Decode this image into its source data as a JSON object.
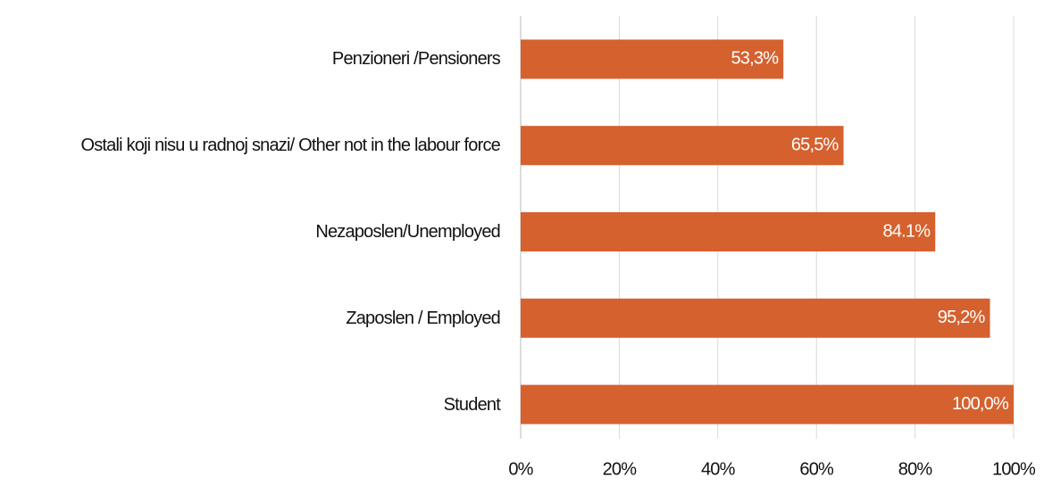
{
  "chart_data": {
    "type": "bar",
    "orientation": "horizontal",
    "categories": [
      "Penzioneri /Pensioners",
      "Ostali koji nisu u radnoj snazi/ Other not in the labour force",
      "Nezaposlen/Unemployed",
      "Zaposlen / Employed",
      "Student"
    ],
    "values": [
      53.3,
      65.5,
      84.1,
      95.2,
      100.0
    ],
    "value_labels": [
      "53,3%",
      "65,5%",
      "84.1%",
      "95,2%",
      "100,0%"
    ],
    "color": "#d5612f",
    "xlim": [
      0,
      100
    ],
    "xticks": [
      {
        "value": 0,
        "label": "0%"
      },
      {
        "value": 20,
        "label": "20%"
      },
      {
        "value": 40,
        "label": "40%"
      },
      {
        "value": 60,
        "label": "60%"
      },
      {
        "value": 80,
        "label": "80%"
      },
      {
        "value": 100,
        "label": "100%"
      }
    ],
    "grid": true
  }
}
